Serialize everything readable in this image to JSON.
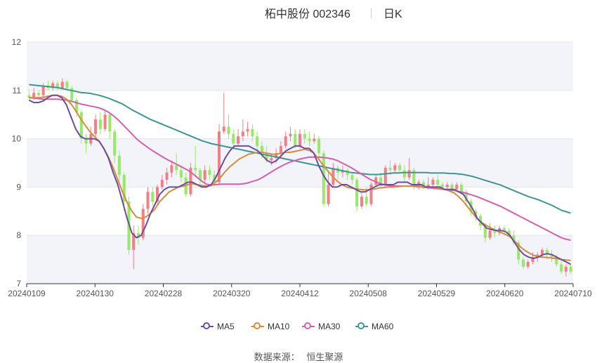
{
  "header": {
    "title": "柘中股份 002346",
    "subtitle": "日K"
  },
  "source": {
    "label": "数据来源：",
    "value": "恒生聚源"
  },
  "colors": {
    "up": "#f07f86",
    "down": "#99e86a",
    "ma5": "#6a4ea1",
    "ma10": "#d98a3b",
    "ma30": "#d45fae",
    "ma60": "#3e9693",
    "band": "#f3f4fa",
    "grid": "#e6e6e6"
  },
  "chart_data": {
    "type": "candlestick",
    "ylim": [
      7,
      12
    ],
    "yticks": [
      7,
      8,
      9,
      10,
      11,
      12
    ],
    "xtick_labels": [
      "20240109",
      "20240130",
      "20240228",
      "20240320",
      "20240412",
      "20240508",
      "20240529",
      "20240620",
      "20240710"
    ],
    "legend": [
      "MA5",
      "MA10",
      "MA30",
      "MA60"
    ],
    "candles": [
      [
        10.9,
        10.85,
        11.0,
        10.8
      ],
      [
        10.85,
        10.95,
        11.05,
        10.8
      ],
      [
        10.95,
        10.9,
        11.0,
        10.85
      ],
      [
        10.9,
        11.1,
        11.15,
        10.88
      ],
      [
        11.1,
        11.05,
        11.2,
        11.0
      ],
      [
        11.05,
        11.15,
        11.2,
        11.0
      ],
      [
        11.15,
        11.05,
        11.2,
        11.0
      ],
      [
        11.05,
        11.18,
        11.25,
        11.02
      ],
      [
        11.18,
        11.05,
        11.22,
        11.0
      ],
      [
        11.05,
        10.8,
        11.1,
        10.75
      ],
      [
        10.8,
        10.55,
        10.85,
        10.45
      ],
      [
        10.55,
        10.0,
        10.6,
        9.9
      ],
      [
        10.0,
        9.9,
        10.1,
        9.7
      ],
      [
        9.9,
        10.1,
        10.25,
        9.85
      ],
      [
        10.1,
        10.4,
        10.5,
        10.05
      ],
      [
        10.4,
        10.2,
        10.55,
        10.1
      ],
      [
        10.2,
        10.5,
        10.6,
        10.15
      ],
      [
        10.5,
        10.15,
        10.55,
        10.0
      ],
      [
        10.15,
        9.65,
        10.2,
        9.5
      ],
      [
        9.65,
        9.25,
        9.75,
        9.1
      ],
      [
        9.25,
        8.7,
        9.3,
        8.5
      ],
      [
        8.7,
        7.7,
        8.8,
        7.6
      ],
      [
        7.7,
        8.05,
        8.2,
        7.3
      ],
      [
        8.05,
        7.95,
        8.2,
        7.8
      ],
      [
        7.95,
        8.55,
        8.65,
        7.9
      ],
      [
        8.55,
        8.9,
        9.0,
        8.45
      ],
      [
        8.9,
        8.7,
        9.0,
        8.6
      ],
      [
        8.7,
        9.0,
        9.05,
        8.65
      ],
      [
        9.0,
        9.15,
        9.25,
        8.95
      ],
      [
        9.15,
        9.3,
        9.4,
        9.05
      ],
      [
        9.3,
        9.45,
        9.55,
        9.2
      ],
      [
        9.45,
        9.35,
        9.7,
        9.25
      ],
      [
        9.35,
        9.2,
        9.45,
        9.1
      ],
      [
        9.2,
        8.85,
        9.3,
        8.8
      ],
      [
        8.85,
        9.4,
        9.5,
        8.8
      ],
      [
        9.4,
        9.35,
        9.85,
        9.2
      ],
      [
        9.35,
        9.15,
        9.4,
        9.05
      ],
      [
        9.15,
        9.35,
        9.45,
        9.1
      ],
      [
        9.35,
        9.25,
        9.45,
        9.15
      ],
      [
        9.25,
        9.1,
        9.35,
        9.05
      ],
      [
        9.1,
        10.15,
        10.3,
        9.05
      ],
      [
        10.15,
        10.25,
        10.95,
        10.1
      ],
      [
        10.25,
        10.1,
        10.5,
        10.0
      ],
      [
        10.1,
        9.9,
        10.2,
        9.8
      ],
      [
        9.9,
        10.05,
        10.2,
        9.85
      ],
      [
        10.05,
        10.15,
        10.4,
        9.95
      ],
      [
        10.15,
        10.2,
        10.35,
        10.05
      ],
      [
        10.2,
        10.05,
        10.3,
        9.95
      ],
      [
        10.05,
        9.85,
        10.15,
        9.75
      ],
      [
        9.85,
        9.7,
        9.95,
        9.6
      ],
      [
        9.7,
        9.55,
        9.85,
        9.5
      ],
      [
        9.55,
        9.6,
        9.7,
        9.45
      ],
      [
        9.6,
        9.7,
        9.8,
        9.5
      ],
      [
        9.7,
        9.85,
        9.95,
        9.6
      ],
      [
        9.85,
        10.05,
        10.15,
        9.8
      ],
      [
        10.05,
        10.1,
        10.25,
        9.95
      ],
      [
        10.1,
        9.85,
        10.2,
        9.8
      ],
      [
        9.85,
        10.1,
        10.2,
        9.8
      ],
      [
        10.1,
        10.0,
        10.2,
        9.9
      ],
      [
        10.0,
        9.95,
        10.15,
        9.85
      ],
      [
        9.95,
        10.0,
        10.1,
        9.9
      ],
      [
        10.0,
        9.7,
        10.05,
        9.55
      ],
      [
        9.7,
        8.65,
        9.75,
        8.6
      ],
      [
        8.65,
        9.05,
        9.3,
        8.6
      ],
      [
        9.05,
        9.4,
        9.5,
        9.0
      ],
      [
        9.4,
        9.3,
        9.45,
        9.15
      ],
      [
        9.3,
        9.35,
        9.45,
        9.2
      ],
      [
        9.35,
        9.25,
        9.4,
        9.15
      ],
      [
        9.25,
        9.15,
        9.3,
        9.05
      ],
      [
        9.15,
        8.6,
        9.2,
        8.5
      ],
      [
        8.6,
        8.8,
        8.9,
        8.55
      ],
      [
        8.8,
        8.65,
        9.0,
        8.6
      ],
      [
        8.65,
        9.05,
        9.1,
        8.6
      ],
      [
        9.05,
        9.2,
        9.25,
        9.0
      ],
      [
        9.2,
        9.05,
        9.3,
        9.0
      ],
      [
        9.05,
        9.4,
        9.45,
        9.0
      ],
      [
        9.4,
        9.35,
        9.55,
        9.25
      ],
      [
        9.35,
        9.45,
        9.5,
        9.3
      ],
      [
        9.45,
        9.35,
        9.5,
        9.3
      ],
      [
        9.35,
        9.2,
        9.45,
        9.1
      ],
      [
        9.2,
        9.35,
        9.6,
        9.15
      ],
      [
        9.35,
        9.0,
        9.4,
        8.95
      ],
      [
        9.0,
        9.1,
        9.15,
        8.95
      ],
      [
        9.1,
        9.0,
        9.15,
        8.95
      ],
      [
        9.0,
        9.05,
        9.2,
        8.95
      ],
      [
        9.05,
        9.15,
        9.2,
        9.0
      ],
      [
        9.15,
        9.05,
        9.25,
        9.0
      ],
      [
        9.05,
        9.0,
        9.1,
        8.95
      ],
      [
        9.0,
        9.05,
        9.1,
        8.95
      ],
      [
        9.05,
        8.95,
        9.1,
        8.9
      ],
      [
        8.95,
        9.05,
        9.1,
        8.9
      ],
      [
        9.05,
        8.9,
        9.1,
        8.85
      ],
      [
        8.9,
        8.7,
        8.95,
        8.6
      ],
      [
        8.7,
        8.5,
        8.75,
        8.4
      ],
      [
        8.5,
        8.4,
        8.55,
        8.3
      ],
      [
        8.4,
        8.2,
        8.45,
        8.1
      ],
      [
        8.2,
        7.95,
        8.25,
        7.85
      ],
      [
        7.95,
        8.1,
        8.25,
        7.9
      ],
      [
        8.1,
        8.05,
        8.2,
        7.95
      ],
      [
        8.05,
        8.15,
        8.2,
        8.0
      ],
      [
        8.15,
        8.1,
        8.2,
        8.0
      ],
      [
        8.1,
        8.0,
        8.15,
        7.95
      ],
      [
        8.0,
        7.85,
        8.1,
        7.8
      ],
      [
        7.85,
        7.5,
        7.9,
        7.4
      ],
      [
        7.5,
        7.35,
        7.55,
        7.3
      ],
      [
        7.35,
        7.45,
        7.5,
        7.3
      ],
      [
        7.45,
        7.55,
        7.65,
        7.4
      ],
      [
        7.55,
        7.6,
        7.65,
        7.45
      ],
      [
        7.6,
        7.7,
        7.75,
        7.55
      ],
      [
        7.7,
        7.6,
        7.75,
        7.5
      ],
      [
        7.6,
        7.55,
        7.7,
        7.45
      ],
      [
        7.55,
        7.4,
        7.6,
        7.35
      ],
      [
        7.4,
        7.25,
        7.5,
        7.2
      ],
      [
        7.25,
        7.35,
        7.4,
        7.15
      ],
      [
        7.35,
        7.25,
        7.4,
        7.2
      ]
    ],
    "ma5": [
      10.8,
      10.75,
      10.75,
      10.78,
      10.85,
      10.9,
      10.9,
      10.85,
      10.7,
      10.45,
      10.2,
      10.05,
      10.0,
      10.0,
      10.0,
      9.95,
      9.8,
      9.6,
      9.3,
      9.05,
      8.7,
      8.35,
      8.05,
      7.95,
      8.0,
      8.2,
      8.45,
      8.65,
      8.85,
      8.95,
      9.0,
      9.0,
      9.0,
      9.05,
      9.1,
      9.1,
      9.05,
      9.0,
      9.0,
      9.05,
      9.2,
      9.4,
      9.6,
      9.75,
      9.85,
      9.85,
      9.85,
      9.85,
      9.8,
      9.75,
      9.65,
      9.55,
      9.5,
      9.55,
      9.65,
      9.75,
      9.8,
      9.85,
      9.85,
      9.8,
      9.8,
      9.7,
      9.45,
      9.25,
      9.1,
      9.0,
      9.0,
      9.05,
      9.05,
      9.0,
      8.95,
      8.9,
      8.9,
      8.95,
      9.0,
      9.05,
      9.05,
      9.05,
      9.05,
      9.1,
      9.1,
      9.1,
      9.05,
      9.05,
      9.05,
      9.0,
      9.0,
      9.0,
      9.0,
      8.95,
      8.95,
      8.95,
      8.9,
      8.85,
      8.7,
      8.55,
      8.35,
      8.25,
      8.15,
      8.12,
      8.1,
      8.1,
      8.08,
      8.0,
      7.85,
      7.7,
      7.6,
      7.55,
      7.52,
      7.55,
      7.6,
      7.62,
      7.6,
      7.55,
      7.5,
      7.45,
      7.4
    ],
    "ma10": [
      10.85,
      10.85,
      10.85,
      10.86,
      10.88,
      10.9,
      10.9,
      10.88,
      10.82,
      10.72,
      10.58,
      10.42,
      10.28,
      10.15,
      10.05,
      9.95,
      9.8,
      9.62,
      9.4,
      9.15,
      8.9,
      8.68,
      8.5,
      8.38,
      8.35,
      8.38,
      8.45,
      8.55,
      8.7,
      8.8,
      8.9,
      8.95,
      9.0,
      9.02,
      9.05,
      9.07,
      9.05,
      9.03,
      9.02,
      9.03,
      9.1,
      9.2,
      9.32,
      9.42,
      9.5,
      9.58,
      9.63,
      9.68,
      9.7,
      9.72,
      9.72,
      9.7,
      9.68,
      9.68,
      9.7,
      9.72,
      9.72,
      9.74,
      9.76,
      9.78,
      9.76,
      9.7,
      9.58,
      9.45,
      9.33,
      9.22,
      9.12,
      9.05,
      9.0,
      8.98,
      8.96,
      8.95,
      8.94,
      8.95,
      8.96,
      8.98,
      8.99,
      9.0,
      9.0,
      9.01,
      9.02,
      9.02,
      9.02,
      9.02,
      9.01,
      9.0,
      8.99,
      8.98,
      8.97,
      8.95,
      8.92,
      8.88,
      8.8,
      8.7,
      8.58,
      8.46,
      8.34,
      8.26,
      8.2,
      8.15,
      8.1,
      8.06,
      8.02,
      7.97,
      7.88,
      7.78,
      7.7,
      7.64,
      7.59,
      7.56,
      7.55,
      7.54,
      7.53,
      7.52,
      7.5,
      7.49,
      7.48
    ],
    "ma30": [
      10.85,
      10.84,
      10.83,
      10.82,
      10.82,
      10.82,
      10.82,
      10.81,
      10.8,
      10.78,
      10.75,
      10.72,
      10.7,
      10.68,
      10.66,
      10.64,
      10.6,
      10.55,
      10.48,
      10.4,
      10.3,
      10.2,
      10.1,
      10.0,
      9.92,
      9.85,
      9.78,
      9.72,
      9.66,
      9.6,
      9.55,
      9.5,
      9.45,
      9.4,
      9.35,
      9.28,
      9.2,
      9.12,
      9.06,
      9.04,
      9.05,
      9.06,
      9.06,
      9.06,
      9.06,
      9.06,
      9.07,
      9.09,
      9.12,
      9.15,
      9.2,
      9.26,
      9.32,
      9.38,
      9.43,
      9.48,
      9.52,
      9.55,
      9.58,
      9.6,
      9.62,
      9.62,
      9.62,
      9.61,
      9.6,
      9.58,
      9.55,
      9.5,
      9.45,
      9.4,
      9.34,
      9.28,
      9.22,
      9.16,
      9.12,
      9.08,
      9.05,
      9.03,
      9.02,
      9.02,
      9.02,
      9.02,
      9.02,
      9.01,
      9.0,
      8.99,
      8.98,
      8.97,
      8.96,
      8.95,
      8.94,
      8.93,
      8.91,
      8.89,
      8.86,
      8.83,
      8.8,
      8.76,
      8.72,
      8.68,
      8.64,
      8.6,
      8.55,
      8.5,
      8.45,
      8.4,
      8.35,
      8.3,
      8.25,
      8.2,
      8.15,
      8.1,
      8.05,
      8.0,
      7.95,
      7.92,
      7.9
    ],
    "ma60": [
      11.12,
      11.11,
      11.1,
      11.09,
      11.08,
      11.07,
      11.06,
      11.04,
      11.02,
      11.0,
      10.98,
      10.96,
      10.95,
      10.94,
      10.92,
      10.9,
      10.87,
      10.84,
      10.8,
      10.76,
      10.72,
      10.66,
      10.6,
      10.55,
      10.5,
      10.45,
      10.4,
      10.36,
      10.32,
      10.28,
      10.24,
      10.2,
      10.16,
      10.12,
      10.08,
      10.04,
      10.0,
      9.96,
      9.93,
      9.9,
      9.88,
      9.86,
      9.84,
      9.82,
      9.8,
      9.78,
      9.76,
      9.74,
      9.72,
      9.7,
      9.68,
      9.66,
      9.64,
      9.62,
      9.6,
      9.58,
      9.56,
      9.54,
      9.52,
      9.5,
      9.48,
      9.46,
      9.44,
      9.42,
      9.4,
      9.38,
      9.36,
      9.34,
      9.32,
      9.3,
      9.29,
      9.28,
      9.27,
      9.26,
      9.26,
      9.26,
      9.27,
      9.28,
      9.29,
      9.29,
      9.3,
      9.3,
      9.3,
      9.3,
      9.3,
      9.3,
      9.29,
      9.29,
      9.29,
      9.29,
      9.28,
      9.28,
      9.27,
      9.26,
      9.24,
      9.22,
      9.19,
      9.16,
      9.13,
      9.1,
      9.07,
      9.04,
      9.0,
      8.96,
      8.92,
      8.88,
      8.84,
      8.8,
      8.77,
      8.74,
      8.7,
      8.66,
      8.62,
      8.57,
      8.52,
      8.49,
      8.46
    ]
  }
}
